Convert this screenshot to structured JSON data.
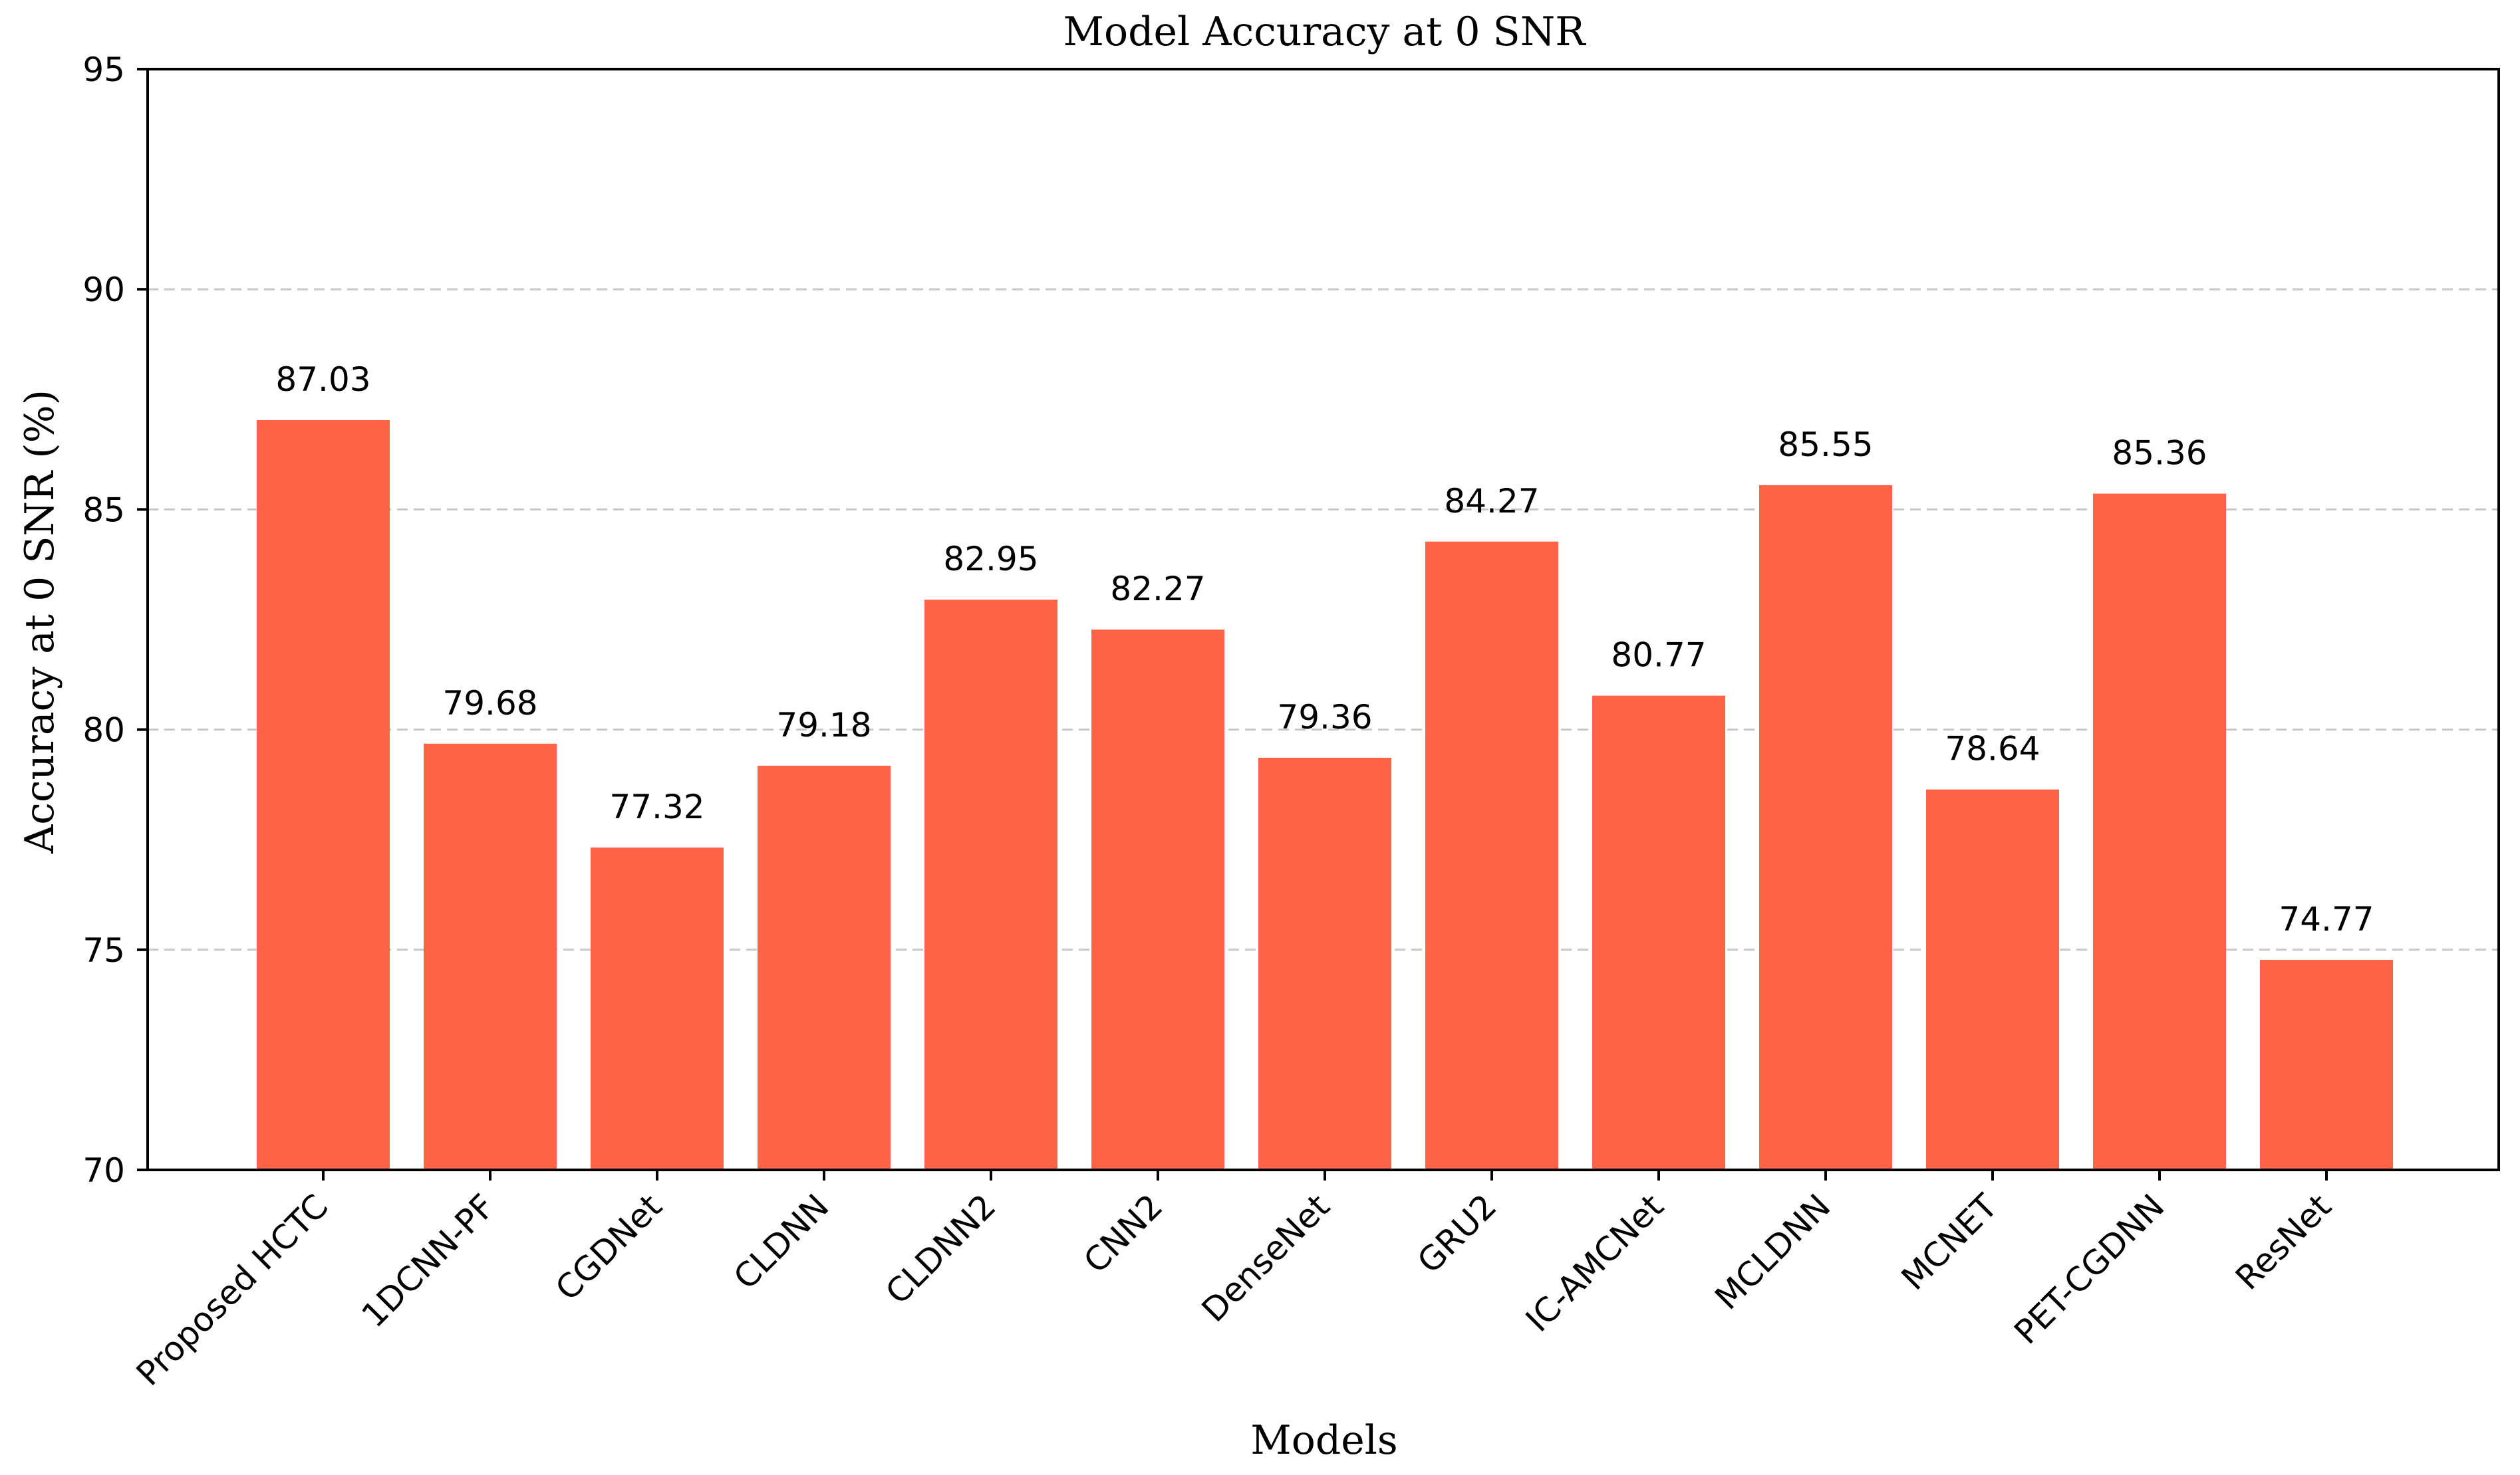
{
  "chart_data": {
    "type": "bar",
    "title": "Model Accuracy at 0 SNR",
    "xlabel": "Models",
    "ylabel": "Accuracy at 0 SNR (%)",
    "ylim": [
      70,
      95
    ],
    "yticks": [
      70,
      75,
      80,
      85,
      90,
      95
    ],
    "grid": "y-dashed",
    "bar_color": "#ff6347",
    "categories": [
      "Proposed HCTC",
      "1DCNN-PF",
      "CGDNet",
      "CLDNN",
      "CLDNN2",
      "CNN2",
      "DenseNet",
      "GRU2",
      "IC-AMCNet",
      "MCLDNN",
      "MCNET",
      "PET-CGDNN",
      "ResNet"
    ],
    "values": [
      87.03,
      79.68,
      77.32,
      79.18,
      82.95,
      82.27,
      79.36,
      84.27,
      80.77,
      85.55,
      78.64,
      85.36,
      74.77
    ],
    "value_labels": [
      "87.03",
      "79.68",
      "77.32",
      "79.18",
      "82.95",
      "82.27",
      "79.36",
      "84.27",
      "80.77",
      "85.55",
      "78.64",
      "85.36",
      "74.77"
    ]
  }
}
